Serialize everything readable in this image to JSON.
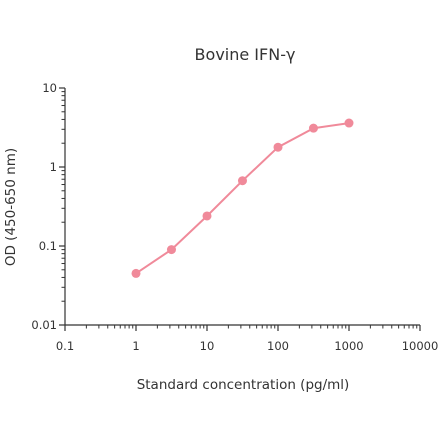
{
  "chart_data": {
    "type": "line",
    "title": "Bovine IFN-γ",
    "xlabel": "Standard concentration (pg/ml)",
    "ylabel": "OD (450-650 nm)",
    "xscale": "log",
    "yscale": "log",
    "xlim": [
      0.1,
      10000
    ],
    "ylim": [
      0.01,
      10
    ],
    "xticks": [
      "0.1",
      "1",
      "10",
      "100",
      "1000",
      "10000"
    ],
    "yticks": [
      "0.01",
      "0.1",
      "1",
      "10"
    ],
    "grid": false,
    "legend": "none",
    "series": [
      {
        "color": "#f08a9a",
        "x": [
          1,
          3.16,
          10,
          31.6,
          100,
          316,
          1000
        ],
        "y": [
          0.045,
          0.09,
          0.24,
          0.67,
          1.78,
          3.1,
          3.6
        ]
      }
    ]
  }
}
